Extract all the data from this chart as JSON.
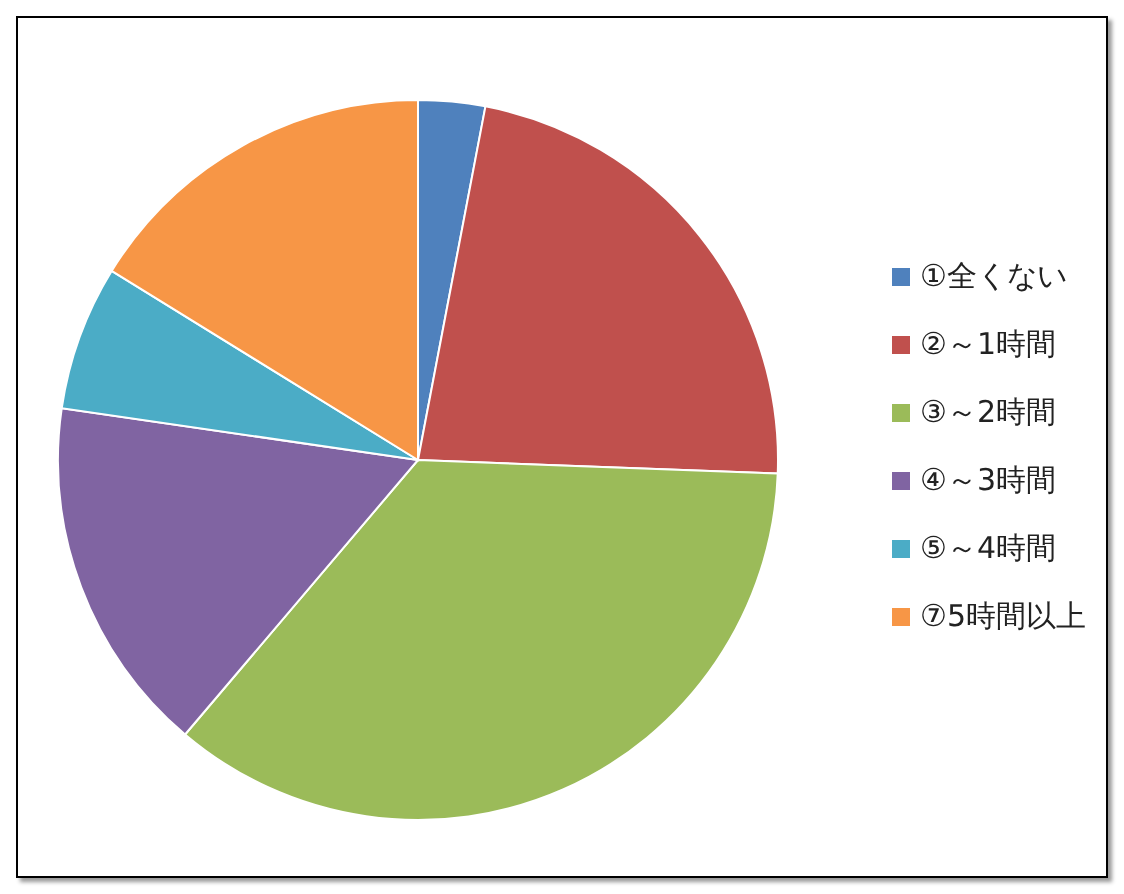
{
  "chart_data": {
    "type": "pie",
    "categories": [
      "①全くない",
      "②～1時間",
      "③～2時間",
      "④～3時間",
      "⑤～4時間",
      "⑦5時間以上"
    ],
    "values": [
      3,
      22.6,
      35.6,
      16.1,
      6.5,
      16.2
    ],
    "colors": [
      "#4f81bd",
      "#c0504d",
      "#9bbb59",
      "#8064a2",
      "#4bacc6",
      "#f79646"
    ],
    "legend": "right"
  }
}
